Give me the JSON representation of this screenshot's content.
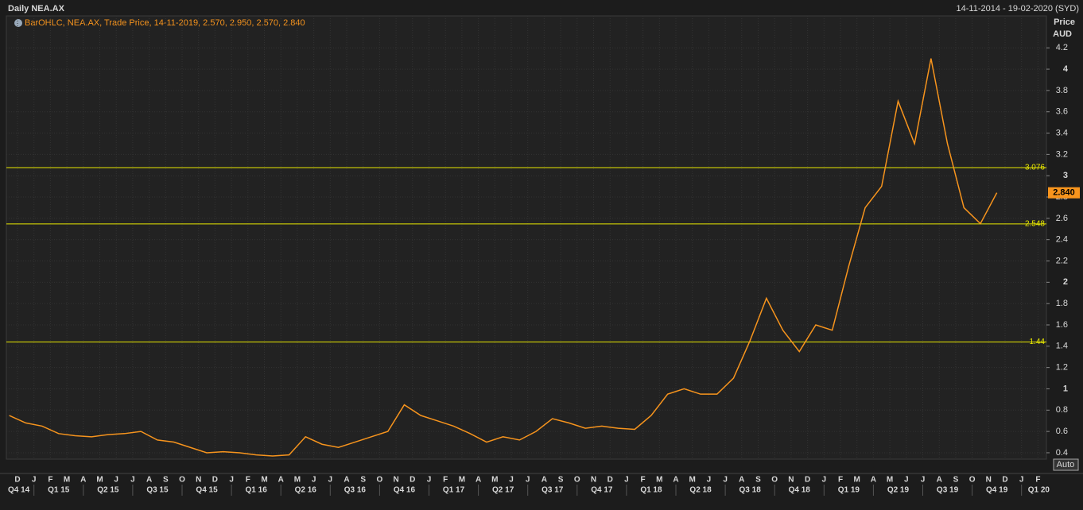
{
  "chart_data": {
    "type": "line",
    "title": "Daily NEA.AX",
    "date_range": "14-11-2014 - 19-02-2020 (SYD)",
    "legend_text": "BarOHLC, NEA.AX, Trade Price,  14-11-2019, 2.570, 2.950, 2.570, 2.840",
    "y_axis_label": "Price",
    "y_axis_unit": "AUD",
    "scale_mode": "Auto",
    "x": [
      "2014-11",
      "2014-12",
      "2015-01",
      "2015-02",
      "2015-03",
      "2015-04",
      "2015-05",
      "2015-06",
      "2015-07",
      "2015-08",
      "2015-09",
      "2015-10",
      "2015-11",
      "2015-12",
      "2016-01",
      "2016-02",
      "2016-03",
      "2016-04",
      "2016-05",
      "2016-06",
      "2016-07",
      "2016-08",
      "2016-09",
      "2016-10",
      "2016-11",
      "2016-12",
      "2017-01",
      "2017-02",
      "2017-03",
      "2017-04",
      "2017-05",
      "2017-06",
      "2017-07",
      "2017-08",
      "2017-09",
      "2017-10",
      "2017-11",
      "2017-12",
      "2018-01",
      "2018-02",
      "2018-03",
      "2018-04",
      "2018-05",
      "2018-06",
      "2018-07",
      "2018-08",
      "2018-09",
      "2018-10",
      "2018-11",
      "2018-12",
      "2019-01",
      "2019-02",
      "2019-03",
      "2019-04",
      "2019-05",
      "2019-06",
      "2019-07",
      "2019-08",
      "2019-09",
      "2019-10",
      "2019-11"
    ],
    "series": [
      {
        "name": "NEA.AX",
        "color": "#f7941d",
        "values": [
          0.75,
          0.68,
          0.65,
          0.58,
          0.56,
          0.55,
          0.57,
          0.58,
          0.6,
          0.52,
          0.5,
          0.45,
          0.4,
          0.41,
          0.4,
          0.38,
          0.37,
          0.38,
          0.55,
          0.48,
          0.45,
          0.5,
          0.55,
          0.6,
          0.85,
          0.75,
          0.7,
          0.65,
          0.58,
          0.5,
          0.55,
          0.52,
          0.6,
          0.72,
          0.68,
          0.63,
          0.65,
          0.63,
          0.62,
          0.75,
          0.95,
          1.0,
          0.95,
          0.95,
          1.1,
          1.45,
          1.85,
          1.55,
          1.35,
          1.6,
          1.55,
          2.15,
          2.7,
          2.9,
          3.7,
          3.3,
          4.1,
          3.3,
          2.7,
          2.55,
          2.84
        ]
      }
    ],
    "last_price": {
      "value": 2.84,
      "label": "2.840"
    },
    "hlines": [
      {
        "value": 3.076,
        "color": "#e8e800"
      },
      {
        "value": 2.548,
        "color": "#e8e800"
      },
      {
        "value": 1.44,
        "color": "#e8e800"
      }
    ],
    "ylim": [
      0.34,
      4.5
    ],
    "yticks": [
      0.4,
      0.6,
      0.8,
      1,
      1.2,
      1.4,
      1.6,
      1.8,
      2,
      2.2,
      2.4,
      2.6,
      2.8,
      3,
      3.2,
      3.4,
      3.6,
      3.8,
      4,
      4.2
    ],
    "month_ticks": [
      "D",
      "J",
      "F",
      "M",
      "A",
      "M",
      "J",
      "J",
      "A",
      "S",
      "O",
      "N",
      "D",
      "J",
      "F",
      "M",
      "A",
      "M",
      "J",
      "J",
      "A",
      "S",
      "O",
      "N",
      "D",
      "J",
      "F",
      "M",
      "A",
      "M",
      "J",
      "J",
      "A",
      "S",
      "O",
      "N",
      "D",
      "J",
      "F",
      "M",
      "A",
      "M",
      "J",
      "J",
      "A",
      "S",
      "O",
      "N",
      "D",
      "J",
      "F",
      "M",
      "A",
      "M",
      "J",
      "J",
      "A",
      "S",
      "O",
      "N",
      "D",
      "J",
      "F"
    ],
    "quarter_ticks": [
      "Q4 14",
      "Q1 15",
      "Q2 15",
      "Q3 15",
      "Q4 15",
      "Q1 16",
      "Q2 16",
      "Q3 16",
      "Q4 16",
      "Q1 17",
      "Q2 17",
      "Q3 17",
      "Q4 17",
      "Q1 18",
      "Q2 18",
      "Q3 18",
      "Q4 18",
      "Q1 19",
      "Q2 19",
      "Q3 19",
      "Q4 19",
      "Q1 20"
    ],
    "grid": true
  }
}
